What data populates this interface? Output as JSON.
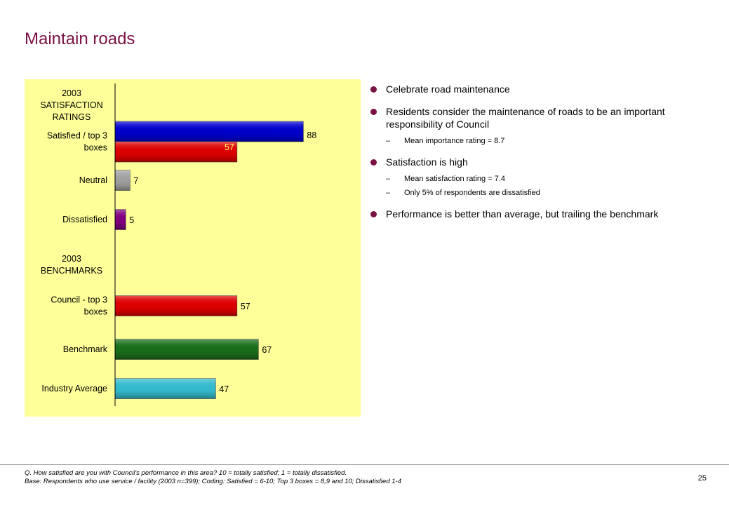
{
  "page": {
    "title": "Maintain roads",
    "page_number": "25"
  },
  "bullets": [
    {
      "text": "Celebrate road maintenance",
      "subs": []
    },
    {
      "text": "Residents consider the maintenance of roads to be an important responsibility of Council",
      "subs": [
        "Mean importance rating = 8.7"
      ]
    },
    {
      "text": "Satisfaction is high",
      "subs": [
        "Mean satisfaction rating = 7.4",
        "Only 5% of respondents are dissatisfied"
      ]
    },
    {
      "text": "Performance is better than average, but trailing the benchmark",
      "subs": []
    }
  ],
  "footnote": {
    "line1": "Q. How satisfied are you with Council's performance in this area?  10 = totally satisfied; 1 = totally dissatisfied.",
    "line2": "Base: Respondents who use service / facility (2003 n=399);  Coding: Satisfied = 6-10; Top 3 boxes = 8,9 and 10; Dissatisfied 1-4"
  },
  "colors": {
    "background_panel": "#ffff99",
    "title": "#7a1144",
    "blue": "#0000cc",
    "red": "#dd0000",
    "grey": "#a0a0a0",
    "purple": "#800080",
    "green": "#1a6e1a",
    "teal": "#33bbcc"
  },
  "chart_data": {
    "type": "bar",
    "orientation": "horizontal",
    "xlim": [
      0,
      100
    ],
    "section_headers": [
      {
        "lines": [
          "2003",
          "SATISFACTION",
          "RATINGS"
        ],
        "before_row": 0
      },
      {
        "lines": [
          "2003",
          "BENCHMARKS"
        ],
        "before_row": 3
      }
    ],
    "rows": [
      {
        "label": [
          "Satisfied / top 3",
          "boxes"
        ],
        "bars": [
          {
            "value": 88,
            "label": "88",
            "color": "blue"
          },
          {
            "value": 57,
            "label": "57",
            "color": "red",
            "label_inside": true
          }
        ]
      },
      {
        "label": [
          "Neutral"
        ],
        "bars": [
          {
            "value": 7,
            "label": "7",
            "color": "grey"
          }
        ]
      },
      {
        "label": [
          "Dissatisfied"
        ],
        "bars": [
          {
            "value": 5,
            "label": "5",
            "color": "purple"
          }
        ]
      },
      {
        "label": [
          "Council - top 3",
          "boxes"
        ],
        "bars": [
          {
            "value": 57,
            "label": "57",
            "color": "red"
          }
        ]
      },
      {
        "label": [
          "Benchmark"
        ],
        "bars": [
          {
            "value": 67,
            "label": "67",
            "color": "green"
          }
        ]
      },
      {
        "label": [
          "Industry Average"
        ],
        "bars": [
          {
            "value": 47,
            "label": "47",
            "color": "teal"
          }
        ]
      }
    ]
  }
}
